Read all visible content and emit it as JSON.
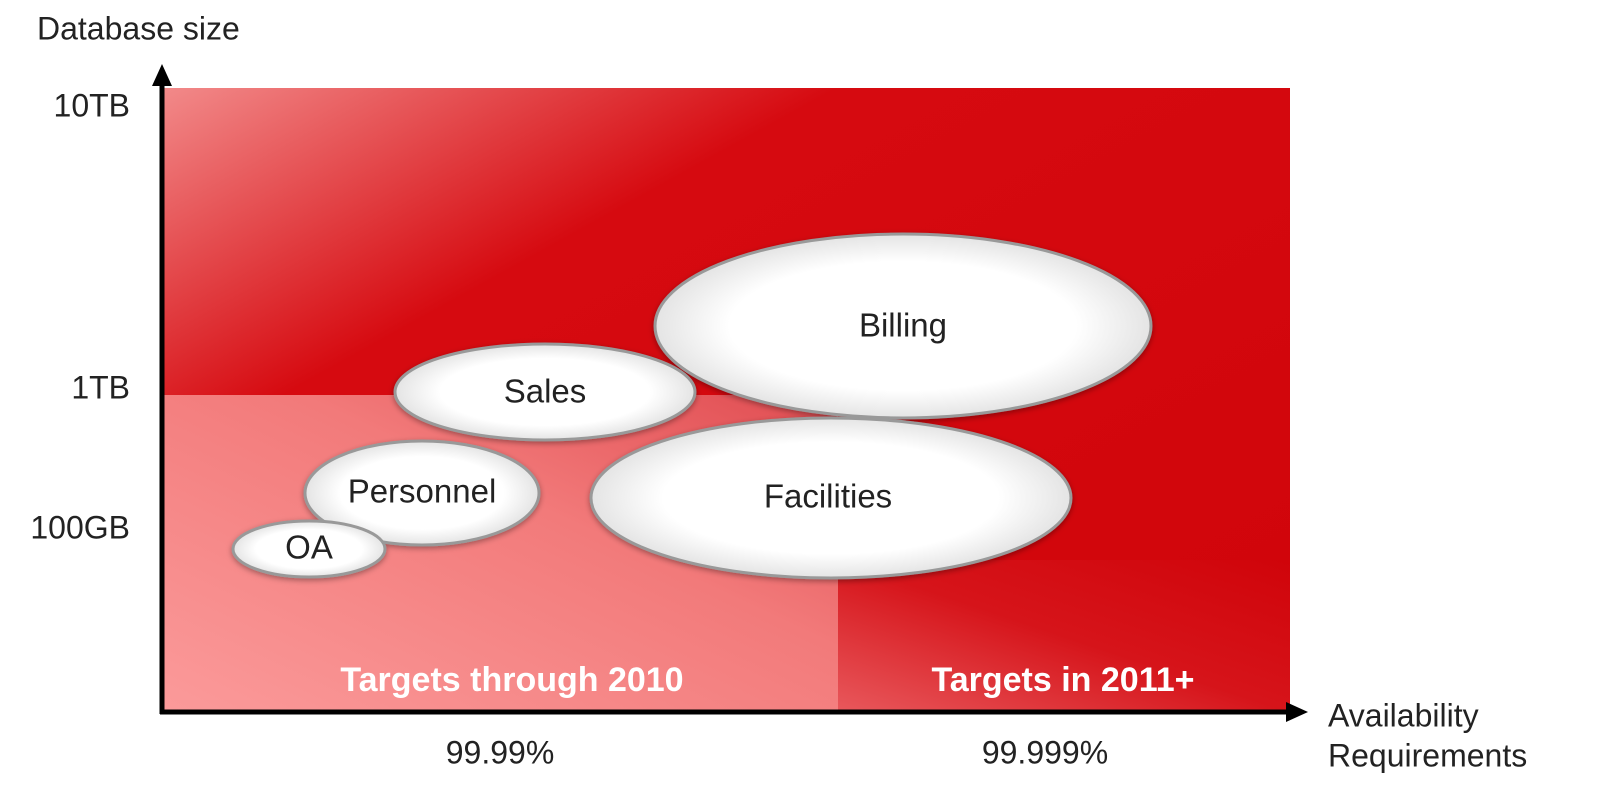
{
  "y_axis": {
    "label": "Database size",
    "ticks": [
      "10TB",
      "1TB",
      "100GB"
    ]
  },
  "x_axis": {
    "label_lines": [
      "Availability",
      "Requirements"
    ],
    "ticks": [
      "99.99%",
      "99.999%"
    ]
  },
  "regions": [
    "Targets through 2010",
    "Targets in 2011+"
  ],
  "bubbles": [
    "Billing",
    "Sales",
    "Facilities",
    "Personnel",
    "OA"
  ]
}
